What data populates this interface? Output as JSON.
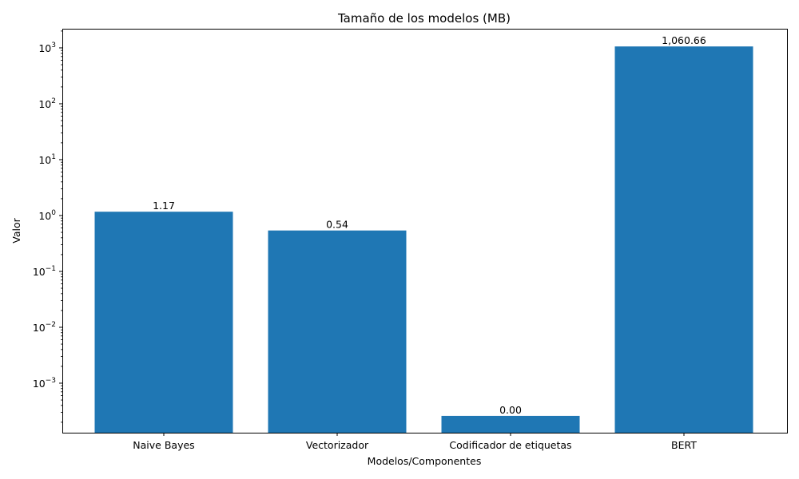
{
  "chart_data": {
    "type": "bar",
    "title": "Tamaño de los modelos (MB)",
    "xlabel": "Modelos/Componentes",
    "ylabel": "Valor",
    "yscale": "log",
    "ylim": [
      0.00013,
      2200
    ],
    "grid": false,
    "color": "#1f77b4",
    "categories": [
      "Naive Bayes",
      "Vectorizador",
      "Codificador de etiquetas",
      "BERT"
    ],
    "values": [
      1.17,
      0.54,
      0.00026,
      1060.66
    ],
    "value_labels": [
      "1.17",
      "0.54",
      "0.00",
      "1,060.66"
    ],
    "yticks": [
      {
        "value": 0.001,
        "base": "10",
        "exp": "−3"
      },
      {
        "value": 0.01,
        "base": "10",
        "exp": "−2"
      },
      {
        "value": 0.1,
        "base": "10",
        "exp": "−1"
      },
      {
        "value": 1,
        "base": "10",
        "exp": "0"
      },
      {
        "value": 10,
        "base": "10",
        "exp": "1"
      },
      {
        "value": 100,
        "base": "10",
        "exp": "2"
      },
      {
        "value": 1000,
        "base": "10",
        "exp": "3"
      }
    ]
  }
}
